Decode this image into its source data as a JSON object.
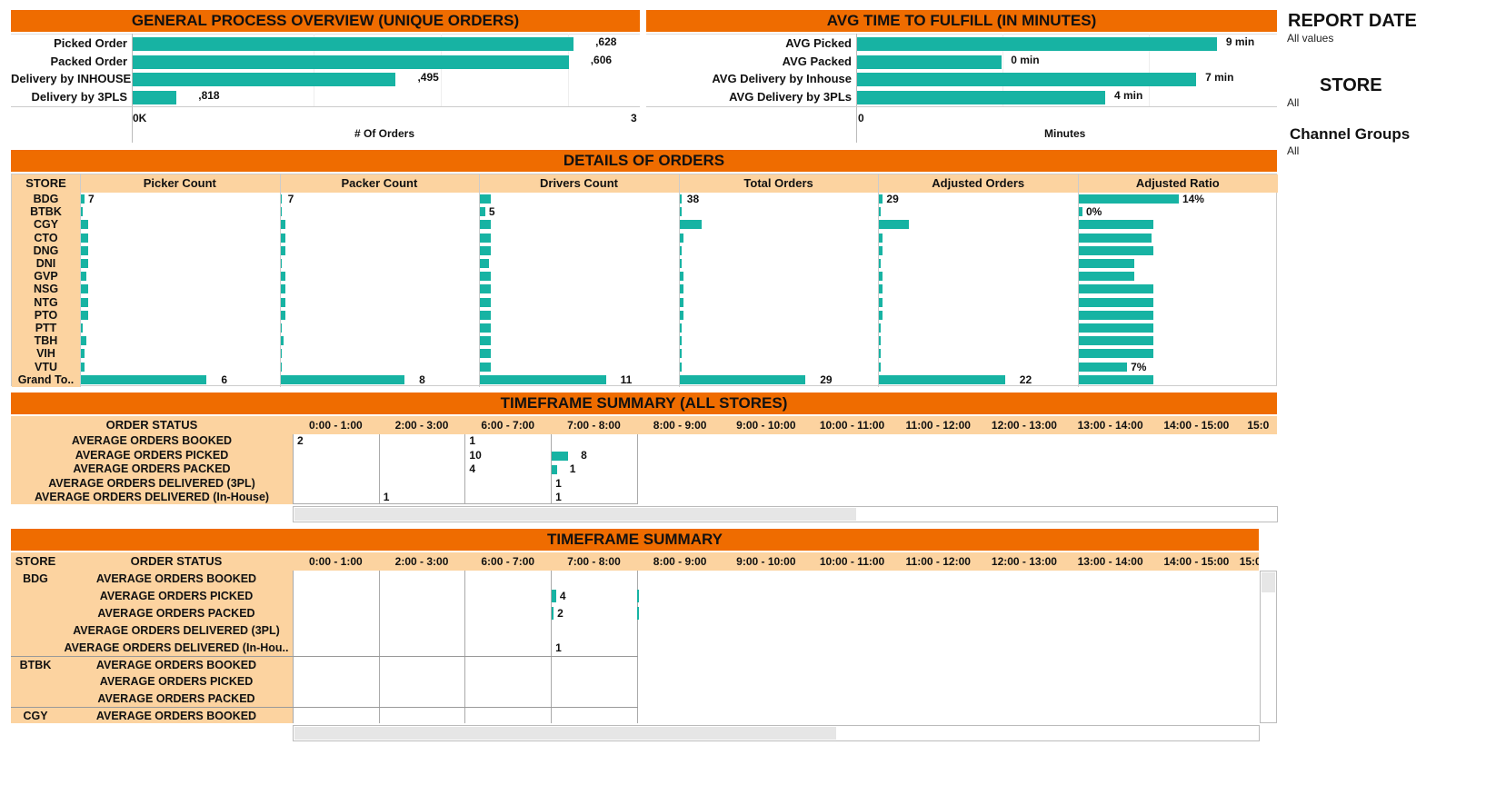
{
  "overview": {
    "title": "GENERAL PROCESS OVERVIEW (UNIQUE ORDERS)",
    "rows": [
      {
        "label": "Picked Order",
        "value": ",628",
        "frac": 0.905
      },
      {
        "label": "Packed Order",
        "value": ",606",
        "frac": 0.895
      },
      {
        "label": "Delivery by INHOUSE",
        "value": ",495",
        "frac": 0.54
      },
      {
        "label": "Delivery by 3PLS",
        "value": ",818",
        "frac": 0.09
      }
    ],
    "axis_start": "0K",
    "axis_end": "3",
    "axis_title": "# Of Orders"
  },
  "avg_time": {
    "title": "AVG TIME TO FULFILL (IN MINUTES)",
    "rows": [
      {
        "label": "AVG Picked",
        "value": "9 min",
        "frac": 0.87
      },
      {
        "label": "AVG Packed",
        "value": "0 min",
        "frac": 0.35
      },
      {
        "label": "AVG Delivery by Inhouse",
        "value": "7 min",
        "frac": 0.82
      },
      {
        "label": "AVG Delivery by 3PLs",
        "value": "4 min",
        "frac": 0.6
      }
    ],
    "axis_start": "0",
    "axis_title": "Minutes"
  },
  "filters": {
    "report_date_title": "REPORT DATE",
    "report_date_value": "All values",
    "store_title": "STORE",
    "store_value": "All",
    "channel_title": "Channel Groups",
    "channel_value": "All"
  },
  "details": {
    "title": "DETAILS OF ORDERS",
    "store_header": "STORE",
    "columns": [
      "Picker Count",
      "Packer Count",
      "Drivers Count",
      "Total Orders",
      "Adjusted Orders",
      "Adjusted Ratio"
    ],
    "stores": [
      "BDG",
      "BTBK",
      "CGY",
      "CTO",
      "DNG",
      "DNI",
      "GVP",
      "NSG",
      "NTG",
      "PTO",
      "PTT",
      "TBH",
      "VIH",
      "VTU",
      "Grand To.."
    ],
    "fracs": [
      [
        0.02,
        0.01,
        0.04,
        0.04,
        0.04,
        0.04,
        0.03,
        0.04,
        0.04,
        0.04,
        0.01,
        0.03,
        0.02,
        0.02,
        0.73
      ],
      [
        0.01,
        0.01,
        0.03,
        0.03,
        0.03,
        0.01,
        0.03,
        0.03,
        0.03,
        0.03,
        0.01,
        0.02,
        0.01,
        0.01,
        0.72
      ],
      [
        0.06,
        0.03,
        0.06,
        0.06,
        0.06,
        0.05,
        0.06,
        0.06,
        0.06,
        0.06,
        0.06,
        0.06,
        0.06,
        0.06,
        0.73
      ],
      [
        0.01,
        0.01,
        0.13,
        0.02,
        0.01,
        0.01,
        0.02,
        0.02,
        0.02,
        0.02,
        0.01,
        0.01,
        0.01,
        0.01,
        0.73
      ],
      [
        0.02,
        0.01,
        0.17,
        0.02,
        0.02,
        0.01,
        0.02,
        0.02,
        0.02,
        0.02,
        0.01,
        0.01,
        0.01,
        0.01,
        0.73
      ],
      [
        0.58,
        0.02,
        0.43,
        0.42,
        0.43,
        0.32,
        0.32,
        0.43,
        0.43,
        0.43,
        0.43,
        0.43,
        0.43,
        0.28,
        0.43
      ]
    ],
    "values": [
      [
        "7",
        "",
        "",
        "",
        "",
        "",
        "",
        "",
        "",
        "",
        "",
        "",
        "",
        "",
        "6"
      ],
      [
        "7",
        "",
        "",
        "",
        "",
        "",
        "",
        "",
        "",
        "",
        "",
        "",
        "",
        "",
        "8"
      ],
      [
        "",
        "5",
        "",
        "",
        "",
        "",
        "",
        "",
        "",
        "",
        "",
        "",
        "",
        "",
        "11"
      ],
      [
        "38",
        "",
        "",
        "",
        "",
        "",
        "",
        "",
        "",
        "",
        "",
        "",
        "",
        "",
        "29"
      ],
      [
        "29",
        "",
        "",
        "",
        "",
        "",
        "",
        "",
        "",
        "",
        "",
        "",
        "",
        "",
        "22"
      ],
      [
        "14%",
        "0%",
        "",
        "",
        "",
        "",
        "",
        "",
        "",
        "",
        "",
        "",
        "",
        "7%",
        ""
      ]
    ]
  },
  "timeframe_all": {
    "title": "TIMEFRAME SUMMARY (ALL STORES)",
    "status_header": "ORDER STATUS",
    "time_cols": [
      "0:00 - 1:00",
      "2:00 - 3:00",
      "6:00 - 7:00",
      "7:00 - 8:00",
      "8:00 - 9:00",
      "9:00 - 10:00",
      "10:00 - 11:00",
      "11:00 - 12:00",
      "12:00 - 13:00",
      "13:00 - 14:00",
      "14:00 - 15:00",
      "15:0"
    ],
    "statuses": [
      "AVERAGE ORDERS BOOKED",
      "AVERAGE ORDERS PICKED",
      "AVERAGE ORDERS PACKED",
      "AVERAGE ORDERS DELIVERED (3PL)",
      "AVERAGE ORDERS DELIVERED (In-House)"
    ],
    "cells": [
      {
        "row": 0,
        "col": 0,
        "text": "2"
      },
      {
        "row": 0,
        "col": 2,
        "text": "1"
      },
      {
        "row": 1,
        "col": 2,
        "text": "10"
      },
      {
        "row": 1,
        "col": 3,
        "text": "8",
        "bar": 0.19
      },
      {
        "row": 2,
        "col": 2,
        "text": "4"
      },
      {
        "row": 2,
        "col": 3,
        "text": "1",
        "bar": 0.06
      },
      {
        "row": 3,
        "col": 3,
        "text": "1"
      },
      {
        "row": 4,
        "col": 1,
        "text": "1"
      },
      {
        "row": 4,
        "col": 3,
        "text": "1"
      }
    ]
  },
  "timeframe_store": {
    "title": "TIMEFRAME SUMMARY",
    "store_header": "STORE",
    "status_header": "ORDER STATUS",
    "time_cols": [
      "0:00 - 1:00",
      "2:00 - 3:00",
      "6:00 - 7:00",
      "7:00 - 8:00",
      "8:00 - 9:00",
      "9:00 - 10:00",
      "10:00 - 11:00",
      "11:00 - 12:00",
      "12:00 - 13:00",
      "13:00 - 14:00",
      "14:00 - 15:00",
      "15:0"
    ],
    "rows": [
      {
        "store": "BDG",
        "status": "AVERAGE ORDERS BOOKED"
      },
      {
        "store": "",
        "status": "AVERAGE ORDERS PICKED"
      },
      {
        "store": "",
        "status": "AVERAGE ORDERS PACKED"
      },
      {
        "store": "",
        "status": "AVERAGE ORDERS DELIVERED (3PL)"
      },
      {
        "store": "",
        "status": "AVERAGE ORDERS DELIVERED (In-Hou.."
      },
      {
        "store": "BTBK",
        "status": "AVERAGE ORDERS BOOKED"
      },
      {
        "store": "",
        "status": "AVERAGE ORDERS PICKED"
      },
      {
        "store": "",
        "status": "AVERAGE ORDERS PACKED"
      },
      {
        "store": "CGY",
        "status": "AVERAGE ORDERS BOOKED"
      }
    ],
    "cells": [
      {
        "row": 1,
        "col": 3,
        "text": "4",
        "bar": 0.05
      },
      {
        "row": 2,
        "col": 3,
        "text": "2",
        "bar": 0.02
      },
      {
        "row": 4,
        "col": 3,
        "text": "1"
      }
    ]
  },
  "colors": {
    "header_orange": "#ef6c00",
    "peach": "#fcd3a0",
    "bar_teal": "#17b3a3"
  }
}
